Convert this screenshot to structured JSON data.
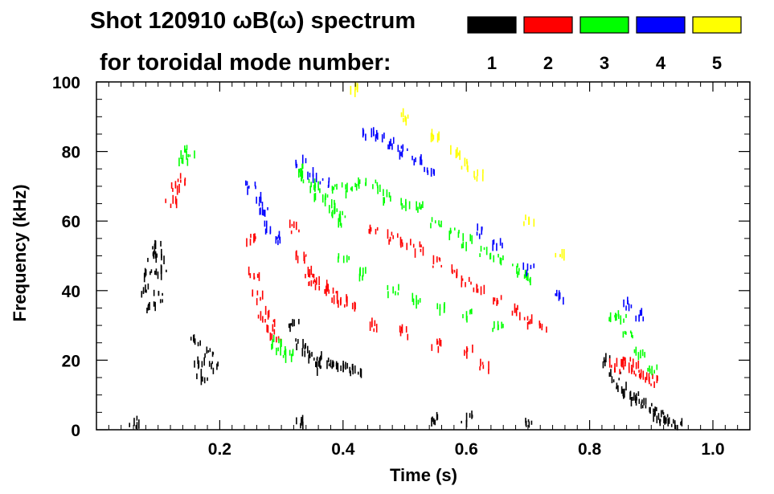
{
  "chart_data": {
    "type": "scatter",
    "title_line1": "Shot 120910 ωB(ω) spectrum",
    "title_line2": "for toroidal mode number:",
    "xlabel": "Time (s)",
    "ylabel": "Frequency (kHz)",
    "xlim": [
      0.0,
      1.06
    ],
    "ylim": [
      0,
      100
    ],
    "xticks": [
      {
        "value": 0.2,
        "label": "0.2"
      },
      {
        "value": 0.4,
        "label": "0.4"
      },
      {
        "value": 0.6,
        "label": "0.6"
      },
      {
        "value": 0.8,
        "label": "0.8"
      },
      {
        "value": 1.0,
        "label": "1.0"
      }
    ],
    "yticks": [
      {
        "value": 0,
        "label": "0"
      },
      {
        "value": 20,
        "label": "20"
      },
      {
        "value": 40,
        "label": "40"
      },
      {
        "value": 60,
        "label": "60"
      },
      {
        "value": 80,
        "label": "80"
      },
      {
        "value": 100,
        "label": "100"
      }
    ],
    "legend": [
      {
        "mode": "1",
        "color": "#000000"
      },
      {
        "mode": "2",
        "color": "#ff0000"
      },
      {
        "mode": "3",
        "color": "#00ff00"
      },
      {
        "mode": "4",
        "color": "#0000ff"
      },
      {
        "mode": "5",
        "color": "#ffff00"
      }
    ],
    "series": [
      {
        "name": "n=1",
        "color": "#000000",
        "points": [
          [
            0.08,
            40
          ],
          [
            0.085,
            45
          ],
          [
            0.09,
            50
          ],
          [
            0.095,
            53
          ],
          [
            0.1,
            50
          ],
          [
            0.105,
            45
          ],
          [
            0.1,
            38
          ],
          [
            0.09,
            35
          ],
          [
            0.16,
            25
          ],
          [
            0.165,
            20
          ],
          [
            0.17,
            15
          ],
          [
            0.18,
            22
          ],
          [
            0.19,
            18
          ],
          [
            0.32,
            30
          ],
          [
            0.33,
            25
          ],
          [
            0.34,
            22
          ],
          [
            0.35,
            20
          ],
          [
            0.36,
            18
          ],
          [
            0.37,
            20
          ],
          [
            0.38,
            19
          ],
          [
            0.39,
            18
          ],
          [
            0.4,
            18
          ],
          [
            0.41,
            17
          ],
          [
            0.42,
            17
          ],
          [
            0.83,
            20
          ],
          [
            0.84,
            15
          ],
          [
            0.85,
            12
          ],
          [
            0.86,
            10
          ],
          [
            0.87,
            9
          ],
          [
            0.88,
            8
          ],
          [
            0.89,
            7
          ],
          [
            0.9,
            6
          ],
          [
            0.91,
            4
          ],
          [
            0.92,
            3
          ],
          [
            0.93,
            2
          ],
          [
            0.94,
            1
          ],
          [
            0.06,
            2
          ],
          [
            0.33,
            2
          ],
          [
            0.55,
            3
          ],
          [
            0.6,
            3
          ],
          [
            0.7,
            2
          ]
        ]
      },
      {
        "name": "n=2",
        "color": "#ff0000",
        "points": [
          [
            0.12,
            65
          ],
          [
            0.13,
            70
          ],
          [
            0.14,
            72
          ],
          [
            0.25,
            55
          ],
          [
            0.255,
            45
          ],
          [
            0.26,
            38
          ],
          [
            0.27,
            33
          ],
          [
            0.28,
            30
          ],
          [
            0.29,
            27
          ],
          [
            0.32,
            58
          ],
          [
            0.33,
            50
          ],
          [
            0.34,
            45
          ],
          [
            0.35,
            43
          ],
          [
            0.36,
            42
          ],
          [
            0.37,
            41
          ],
          [
            0.38,
            40
          ],
          [
            0.39,
            38
          ],
          [
            0.4,
            37
          ],
          [
            0.41,
            36
          ],
          [
            0.45,
            58
          ],
          [
            0.48,
            55
          ],
          [
            0.5,
            53
          ],
          [
            0.52,
            52
          ],
          [
            0.55,
            48
          ],
          [
            0.58,
            45
          ],
          [
            0.6,
            43
          ],
          [
            0.62,
            40
          ],
          [
            0.65,
            37
          ],
          [
            0.68,
            34
          ],
          [
            0.7,
            31
          ],
          [
            0.72,
            30
          ],
          [
            0.45,
            30
          ],
          [
            0.5,
            28
          ],
          [
            0.55,
            24
          ],
          [
            0.6,
            22
          ],
          [
            0.63,
            18
          ],
          [
            0.84,
            18
          ],
          [
            0.85,
            20
          ],
          [
            0.86,
            19
          ],
          [
            0.87,
            18
          ],
          [
            0.88,
            16
          ],
          [
            0.89,
            15
          ],
          [
            0.9,
            14
          ]
        ]
      },
      {
        "name": "n=3",
        "color": "#00ff00",
        "points": [
          [
            0.14,
            78
          ],
          [
            0.15,
            80
          ],
          [
            0.29,
            25
          ],
          [
            0.3,
            22
          ],
          [
            0.31,
            21
          ],
          [
            0.33,
            75
          ],
          [
            0.34,
            72
          ],
          [
            0.35,
            70
          ],
          [
            0.36,
            68
          ],
          [
            0.37,
            66
          ],
          [
            0.38,
            64
          ],
          [
            0.39,
            62
          ],
          [
            0.4,
            60
          ],
          [
            0.39,
            70
          ],
          [
            0.41,
            69
          ],
          [
            0.43,
            70
          ],
          [
            0.45,
            70
          ],
          [
            0.47,
            67
          ],
          [
            0.5,
            65
          ],
          [
            0.52,
            64
          ],
          [
            0.55,
            60
          ],
          [
            0.58,
            57
          ],
          [
            0.6,
            54
          ],
          [
            0.63,
            51
          ],
          [
            0.65,
            49
          ],
          [
            0.68,
            46
          ],
          [
            0.7,
            44
          ],
          [
            0.4,
            50
          ],
          [
            0.43,
            45
          ],
          [
            0.48,
            40
          ],
          [
            0.52,
            37
          ],
          [
            0.56,
            35
          ],
          [
            0.6,
            33
          ],
          [
            0.65,
            30
          ],
          [
            0.84,
            33
          ],
          [
            0.85,
            32
          ],
          [
            0.86,
            28
          ],
          [
            0.88,
            22
          ],
          [
            0.9,
            18
          ]
        ]
      },
      {
        "name": "n=4",
        "color": "#0000ff",
        "points": [
          [
            0.25,
            70
          ],
          [
            0.26,
            66
          ],
          [
            0.27,
            63
          ],
          [
            0.28,
            58
          ],
          [
            0.29,
            55
          ],
          [
            0.33,
            77
          ],
          [
            0.35,
            73
          ],
          [
            0.37,
            71
          ],
          [
            0.44,
            85
          ],
          [
            0.46,
            84
          ],
          [
            0.48,
            82
          ],
          [
            0.5,
            80
          ],
          [
            0.52,
            78
          ],
          [
            0.54,
            75
          ],
          [
            0.62,
            57
          ],
          [
            0.65,
            53
          ],
          [
            0.7,
            46
          ],
          [
            0.75,
            38
          ],
          [
            0.86,
            36
          ],
          [
            0.88,
            33
          ]
        ]
      },
      {
        "name": "n=5",
        "color": "#ffff00",
        "points": [
          [
            0.42,
            98
          ],
          [
            0.5,
            90
          ],
          [
            0.55,
            85
          ],
          [
            0.58,
            80
          ],
          [
            0.6,
            76
          ],
          [
            0.62,
            73
          ],
          [
            0.7,
            60
          ],
          [
            0.75,
            50
          ]
        ]
      }
    ]
  }
}
